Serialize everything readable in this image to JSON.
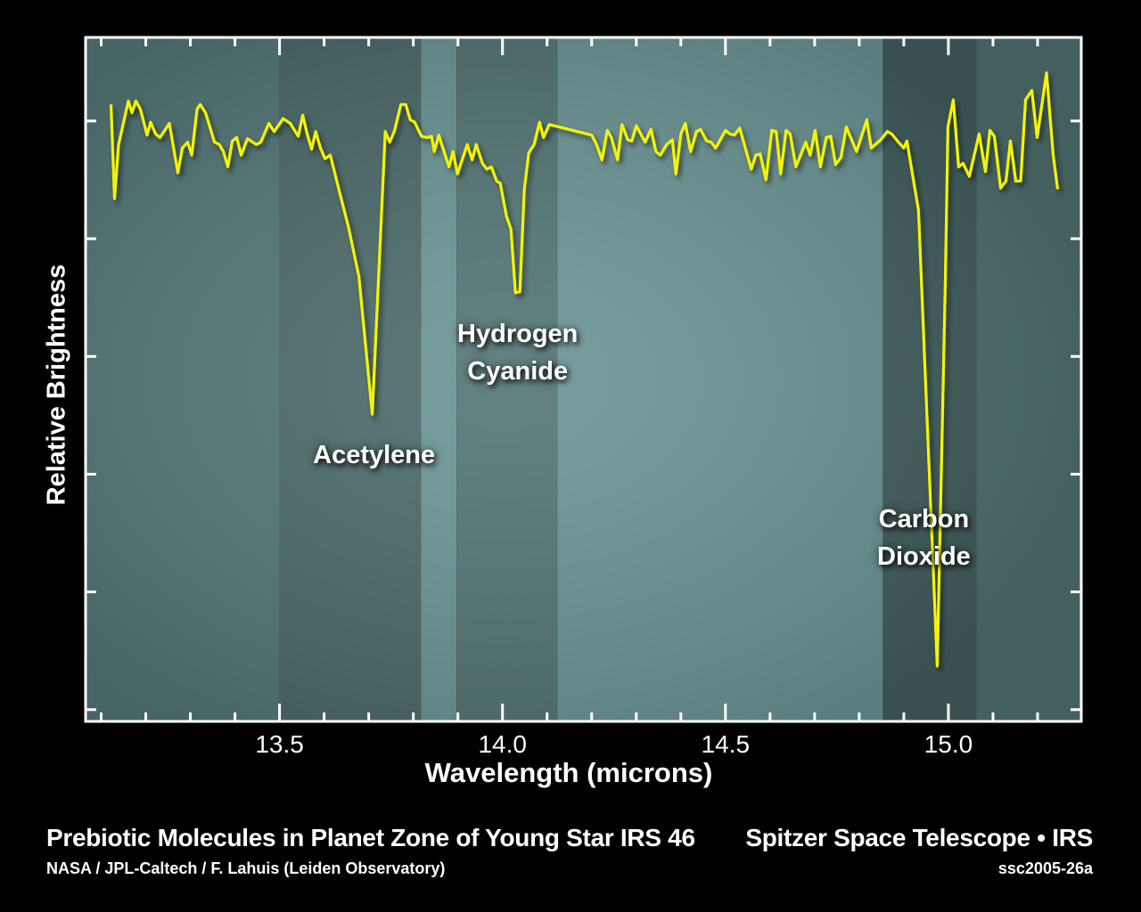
{
  "chart_data": {
    "type": "line",
    "title": "Prebiotic Molecules in Planet Zone of Young Star IRS 46",
    "xlabel": "Wavelength (microns)",
    "ylabel": "Relative Brightness",
    "xlim": [
      13.065,
      15.298
    ],
    "ylim": [
      -0.1,
      5.71
    ],
    "xticks": [
      13.5,
      14.0,
      14.5,
      15.0
    ],
    "xtick_labels": [
      "13.5",
      "14.0",
      "14.5",
      "15.0"
    ],
    "x_minor_step": 0.1,
    "yticks": [
      0,
      1,
      2,
      3,
      4,
      5
    ],
    "ytick_labels_shown": false,
    "grid": false,
    "line_color": "#f4f400",
    "annotations": [
      {
        "lines": [
          "Acetylene"
        ],
        "x": 13.708
      },
      {
        "lines": [
          "Hydrogen",
          "Cyanide"
        ],
        "x": 14.034
      },
      {
        "lines": [
          "Carbon",
          "Dioxide"
        ],
        "x": 14.975
      }
    ],
    "series": [
      {
        "x": [
          13.122,
          13.13,
          13.139,
          13.161,
          13.169,
          13.178,
          13.188,
          13.203,
          13.211,
          13.222,
          13.232,
          13.253,
          13.272,
          13.282,
          13.294,
          13.303,
          13.315,
          13.322,
          13.334,
          13.354,
          13.365,
          13.374,
          13.384,
          13.394,
          13.404,
          13.414,
          13.428,
          13.448,
          13.458,
          13.476,
          13.488,
          13.508,
          13.524,
          13.542,
          13.552,
          13.562,
          13.572,
          13.581,
          13.592,
          13.602,
          13.614,
          13.633,
          13.654,
          13.678,
          13.708,
          13.737,
          13.747,
          13.758,
          13.772,
          13.783,
          13.793,
          13.803,
          13.818,
          13.831,
          13.841,
          13.847,
          13.857,
          13.88,
          13.889,
          13.899,
          13.921,
          13.932,
          13.941,
          13.955,
          13.965,
          13.975,
          13.987,
          13.995,
          14.009,
          14.019,
          14.029,
          14.039,
          14.049,
          14.059,
          14.071,
          14.083,
          14.092,
          14.105,
          14.2,
          14.211,
          14.223,
          14.235,
          14.244,
          14.258,
          14.268,
          14.281,
          14.29,
          14.3,
          14.32,
          14.333,
          14.344,
          14.354,
          14.368,
          14.381,
          14.389,
          14.4,
          14.41,
          14.422,
          14.435,
          14.444,
          14.458,
          14.468,
          14.478,
          14.5,
          14.51,
          14.52,
          14.532,
          14.558,
          14.568,
          14.578,
          14.591,
          14.604,
          14.614,
          14.624,
          14.636,
          14.645,
          14.658,
          14.68,
          14.69,
          14.701,
          14.713,
          14.726,
          14.736,
          14.747,
          14.759,
          14.771,
          14.794,
          14.817,
          14.827,
          14.848,
          14.863,
          14.873,
          14.888,
          14.9,
          14.907,
          14.933,
          14.975,
          14.993,
          14.999,
          15.011,
          15.023,
          15.033,
          15.047,
          15.069,
          15.083,
          15.093,
          15.103,
          15.117,
          15.129,
          15.139,
          15.151,
          15.162,
          15.173,
          15.187,
          15.199,
          15.22,
          15.235,
          15.245
        ],
        "y": [
          5.14,
          4.34,
          4.8,
          5.17,
          5.07,
          5.17,
          5.1,
          4.88,
          4.99,
          4.89,
          4.86,
          4.98,
          4.56,
          4.77,
          4.82,
          4.71,
          5.1,
          5.14,
          5.07,
          4.82,
          4.8,
          4.74,
          4.61,
          4.83,
          4.86,
          4.71,
          4.85,
          4.8,
          4.82,
          4.98,
          4.91,
          5.02,
          4.98,
          4.87,
          5.05,
          4.89,
          4.76,
          4.91,
          4.77,
          4.68,
          4.71,
          4.42,
          4.11,
          3.68,
          2.51,
          4.91,
          4.82,
          4.92,
          5.14,
          5.14,
          5.01,
          4.99,
          4.87,
          4.86,
          4.87,
          4.74,
          4.88,
          4.61,
          4.74,
          4.55,
          4.8,
          4.67,
          4.8,
          4.64,
          4.59,
          4.61,
          4.49,
          4.47,
          4.19,
          4.08,
          3.54,
          3.55,
          4.42,
          4.73,
          4.8,
          4.99,
          4.86,
          4.97,
          4.88,
          4.8,
          4.67,
          4.92,
          4.86,
          4.67,
          4.97,
          4.84,
          4.83,
          4.96,
          4.82,
          4.93,
          4.74,
          4.71,
          4.8,
          4.84,
          4.55,
          4.89,
          4.98,
          4.74,
          4.91,
          4.93,
          4.83,
          4.82,
          4.77,
          4.92,
          4.89,
          4.88,
          4.94,
          4.59,
          4.71,
          4.72,
          4.5,
          4.92,
          4.91,
          4.55,
          4.92,
          4.89,
          4.61,
          4.82,
          4.71,
          4.92,
          4.61,
          4.86,
          4.87,
          4.63,
          4.69,
          4.95,
          4.74,
          5.01,
          4.77,
          4.84,
          4.91,
          4.89,
          4.82,
          4.77,
          4.83,
          4.24,
          0.37,
          3.61,
          4.95,
          5.18,
          4.61,
          4.64,
          4.53,
          4.89,
          4.57,
          4.92,
          4.87,
          4.43,
          4.49,
          4.83,
          4.49,
          4.49,
          5.18,
          5.26,
          4.86,
          5.41,
          4.71,
          4.42
        ]
      }
    ]
  },
  "footer": {
    "title": "Prebiotic Molecules in Planet Zone of Young Star IRS 46",
    "credit": "NASA / JPL-Caltech / F. Lahuis (Leiden Observatory)",
    "mission": "Spitzer Space Telescope • IRS",
    "image_id": "ssc2005-26a"
  },
  "colors": {
    "background": "#000000",
    "plot_light": "#6a9493",
    "plot_dark": "#4a6968",
    "frame": "#ffffff"
  }
}
